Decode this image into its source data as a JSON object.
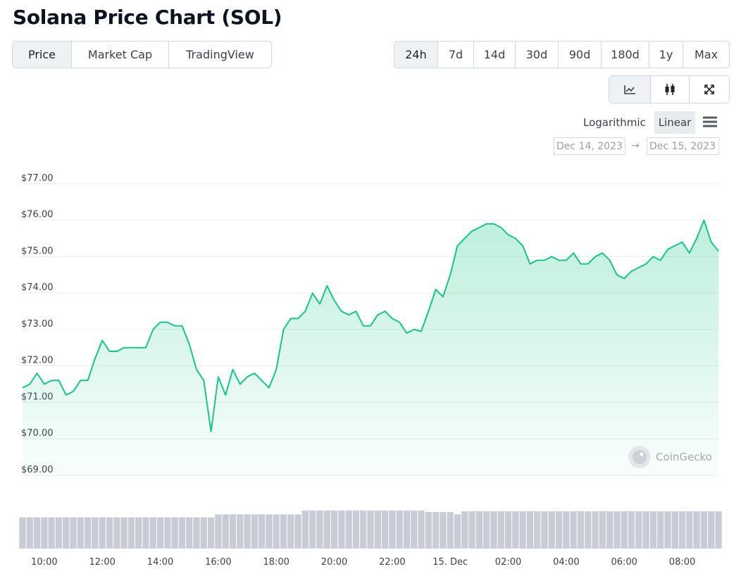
{
  "title": "Solana Price Chart (SOL)",
  "tabs": [
    "Price",
    "Market Cap",
    "TradingView"
  ],
  "periods": [
    "24h",
    "7d",
    "14d",
    "30d",
    "90d",
    "180d",
    "1y",
    "Max"
  ],
  "scale_options": [
    "Logarithmic",
    "Linear"
  ],
  "date_range": {
    "from": "Dec 14, 2023",
    "separator": "→",
    "to": "Dec 15, 2023"
  },
  "watermark": "CoinGecko",
  "chart_data": {
    "type": "line",
    "color": "#16c784",
    "volume_color": "#c9ccd6",
    "grid": true,
    "ylim": [
      68.9,
      77.0
    ],
    "yticks": [
      {
        "value": 69,
        "label": "$69.00"
      },
      {
        "value": 70,
        "label": "$70.00"
      },
      {
        "value": 71,
        "label": "$71.00"
      },
      {
        "value": 72,
        "label": "$72.00"
      },
      {
        "value": 73,
        "label": "$73.00"
      },
      {
        "value": 74,
        "label": "$74.00"
      },
      {
        "value": 75,
        "label": "$75.00"
      },
      {
        "value": 76,
        "label": "$76.00"
      },
      {
        "value": 77,
        "label": "$77.00"
      }
    ],
    "categories": [
      null,
      null,
      null,
      "10:00",
      null,
      null,
      null,
      null,
      null,
      null,
      null,
      "12:00",
      null,
      null,
      null,
      null,
      null,
      null,
      null,
      "14:00",
      null,
      null,
      null,
      null,
      null,
      null,
      null,
      "16:00",
      null,
      null,
      null,
      null,
      null,
      null,
      null,
      "18:00",
      null,
      null,
      null,
      null,
      null,
      null,
      null,
      "20:00",
      null,
      null,
      null,
      null,
      null,
      null,
      null,
      "22:00",
      null,
      null,
      null,
      null,
      null,
      null,
      null,
      "15. Dec",
      null,
      null,
      null,
      null,
      null,
      null,
      null,
      "02:00",
      null,
      null,
      null,
      null,
      null,
      null,
      null,
      "04:00",
      null,
      null,
      null,
      null,
      null,
      null,
      null,
      "06:00",
      null,
      null,
      null,
      null,
      null,
      null,
      null,
      "08:00",
      null,
      null,
      null,
      null,
      null
    ],
    "values": [
      71.4,
      71.5,
      71.8,
      71.5,
      71.6,
      71.6,
      71.2,
      71.3,
      71.6,
      71.6,
      72.2,
      72.7,
      72.4,
      72.4,
      72.5,
      72.5,
      72.5,
      72.5,
      73.0,
      73.2,
      73.2,
      73.1,
      73.1,
      72.6,
      71.9,
      71.6,
      70.2,
      71.7,
      71.2,
      71.9,
      71.5,
      71.7,
      71.8,
      71.6,
      71.4,
      71.9,
      73.0,
      73.3,
      73.3,
      73.5,
      74.0,
      73.7,
      74.2,
      73.8,
      73.5,
      73.4,
      73.5,
      73.1,
      73.1,
      73.4,
      73.5,
      73.3,
      73.2,
      72.9,
      73.0,
      72.95,
      73.5,
      74.1,
      73.9,
      74.5,
      75.3,
      75.5,
      75.7,
      75.8,
      75.9,
      75.9,
      75.8,
      75.6,
      75.5,
      75.3,
      74.8,
      74.9,
      74.9,
      75.0,
      74.9,
      74.9,
      75.1,
      74.8,
      74.8,
      75.0,
      75.1,
      74.9,
      74.5,
      74.4,
      74.6,
      74.7,
      74.8,
      75.0,
      74.9,
      75.2,
      75.3,
      75.4,
      75.1,
      75.5,
      76.0,
      75.4,
      75.15
    ],
    "volume": [
      82,
      82,
      82,
      82,
      82,
      82,
      82,
      82,
      82,
      82,
      82,
      82,
      82,
      82,
      82,
      82,
      82,
      82,
      82,
      82,
      82,
      82,
      82,
      82,
      82,
      82,
      82,
      90,
      90,
      90,
      90,
      90,
      90,
      90,
      90,
      90,
      90,
      90,
      90,
      100,
      100,
      100,
      100,
      100,
      100,
      100,
      100,
      100,
      100,
      100,
      100,
      100,
      100,
      100,
      100,
      100,
      96,
      96,
      96,
      96,
      90,
      98,
      98,
      98,
      98,
      98,
      98,
      98,
      98,
      98,
      98,
      98,
      98,
      98,
      98,
      98,
      98,
      98,
      98,
      98,
      98,
      98,
      98,
      98,
      98,
      98,
      98,
      98,
      98,
      98,
      98,
      98,
      98,
      98,
      98,
      98,
      98
    ]
  }
}
